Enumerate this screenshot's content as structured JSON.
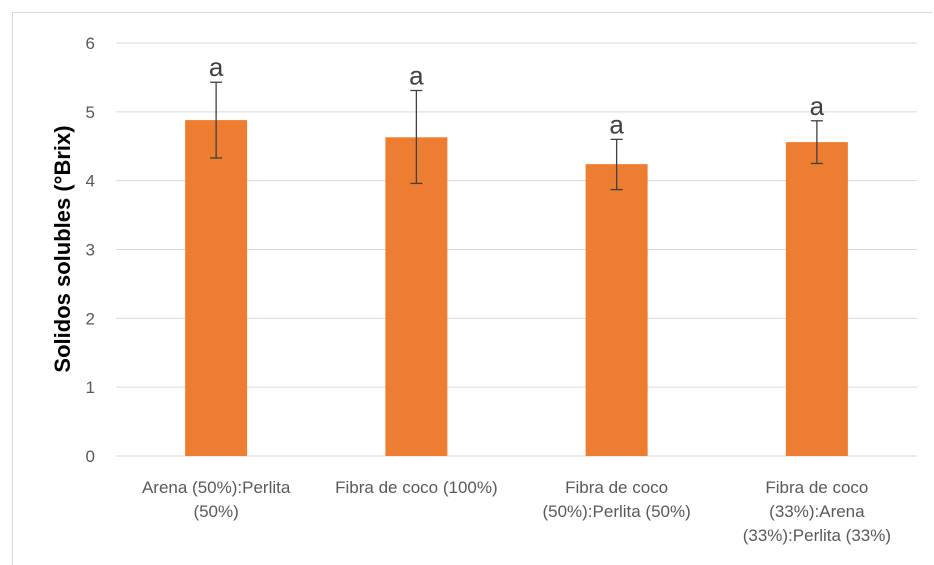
{
  "chart_data": {
    "type": "bar",
    "title": "",
    "xlabel": "",
    "ylabel": "Solidos solubles (°Brix)",
    "ylim": [
      0,
      6
    ],
    "yticks": [
      0,
      1,
      2,
      3,
      4,
      5,
      6
    ],
    "grid": true,
    "legend": "none",
    "categories": [
      [
        "Arena (50%):Perlita",
        "(50%)"
      ],
      [
        "Fibra de coco (100%)"
      ],
      [
        "Fibra de coco",
        "(50%):Perlita (50%)"
      ],
      [
        "Fibra de coco",
        "(33%):Arena",
        "(33%):Perlita (33%)"
      ]
    ],
    "values": [
      4.88,
      4.63,
      4.24,
      4.56
    ],
    "error_low": [
      4.33,
      3.96,
      3.87,
      4.25
    ],
    "error_high": [
      5.43,
      5.31,
      4.6,
      4.87
    ],
    "annotations": [
      "a",
      "a",
      "a",
      "a"
    ],
    "colors": {
      "bar": "#ED7D31",
      "grid": "#D9D9D9",
      "error": "#404040"
    }
  }
}
